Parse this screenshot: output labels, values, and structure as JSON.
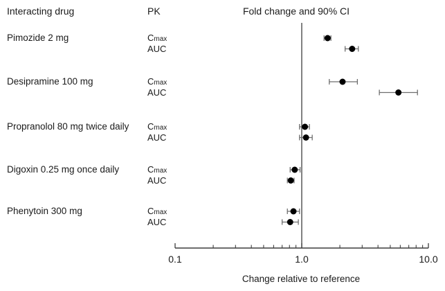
{
  "title": "Fold change and 90% CI",
  "columns": {
    "drug": "Interacting drug",
    "pk": "PK"
  },
  "axis": {
    "label": "Change relative to reference",
    "tick_labels": [
      "0.1",
      "1.0",
      "10.0"
    ]
  },
  "colors": {
    "marker": "#000000",
    "error_bar": "#6e6e6e",
    "axis_line": "#3c3c3c",
    "text": "#1a1a1a"
  },
  "chart_data": {
    "type": "scatter",
    "subtype": "forest-plot-dot-and-ci",
    "title": "Fold change and 90% CI",
    "xlabel": "Change relative to reference",
    "x_scale": "log",
    "xlim": [
      0.1,
      10
    ],
    "x_major_ticks": [
      0.1,
      1.0,
      10.0
    ],
    "x_minor_ticks": [
      0.2,
      0.3,
      0.4,
      0.5,
      0.6,
      0.7,
      0.8,
      0.9,
      2,
      3,
      4,
      5,
      6,
      7,
      8,
      9
    ],
    "reference_line_x": 1.0,
    "ci_level": "90%",
    "groups": [
      {
        "drug": "Pimozide 2 mg",
        "rows": [
          {
            "pk": "Cmax",
            "estimate": 1.6,
            "ci_low": 1.5,
            "ci_high": 1.7
          },
          {
            "pk": "AUC",
            "estimate": 2.5,
            "ci_low": 2.2,
            "ci_high": 2.8
          }
        ]
      },
      {
        "drug": "Desipramine 100 mg",
        "rows": [
          {
            "pk": "Cmax",
            "estimate": 2.1,
            "ci_low": 1.65,
            "ci_high": 2.75
          },
          {
            "pk": "AUC",
            "estimate": 5.8,
            "ci_low": 4.1,
            "ci_high": 8.2
          }
        ]
      },
      {
        "drug": "Propranolol 80 mg twice daily",
        "rows": [
          {
            "pk": "Cmax",
            "estimate": 1.06,
            "ci_low": 0.96,
            "ci_high": 1.15
          },
          {
            "pk": "AUC",
            "estimate": 1.08,
            "ci_low": 0.96,
            "ci_high": 1.21
          }
        ]
      },
      {
        "drug": "Digoxin 0.25 mg once daily",
        "rows": [
          {
            "pk": "Cmax",
            "estimate": 0.88,
            "ci_low": 0.81,
            "ci_high": 0.97
          },
          {
            "pk": "AUC",
            "estimate": 0.82,
            "ci_low": 0.77,
            "ci_high": 0.87
          }
        ]
      },
      {
        "drug": "Phenytoin 300 mg",
        "rows": [
          {
            "pk": "Cmax",
            "estimate": 0.86,
            "ci_low": 0.77,
            "ci_high": 0.96
          },
          {
            "pk": "AUC",
            "estimate": 0.81,
            "ci_low": 0.7,
            "ci_high": 0.94
          }
        ]
      }
    ]
  }
}
